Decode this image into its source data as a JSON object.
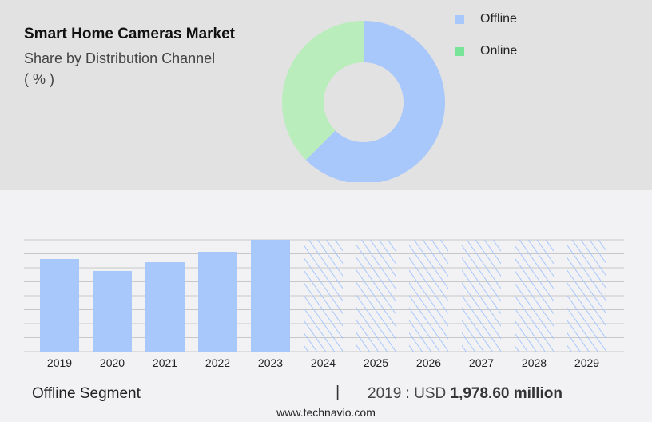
{
  "header": {
    "title": "Smart Home Cameras Market",
    "subtitle": "Share by Distribution Channel",
    "unit": "( % )"
  },
  "colors": {
    "offline": "#a8c8fc",
    "online": "#b9edbb",
    "online_legend": "#78e49a",
    "grid": "#c8c8c8"
  },
  "chart_data": [
    {
      "type": "pie",
      "donut": true,
      "labels": [
        "Offline",
        "Online"
      ],
      "values": [
        62.5,
        37.5
      ],
      "legend_position": "right"
    },
    {
      "type": "bar",
      "categories": [
        "2019",
        "2020",
        "2021",
        "2022",
        "2023",
        "2024",
        "2025",
        "2026",
        "2027",
        "2028",
        "2029"
      ],
      "values": [
        1978.6,
        1723,
        1910,
        2132,
        2388,
        null,
        null,
        null,
        null,
        null,
        null
      ],
      "forecast_hatched": [
        "2024",
        "2025",
        "2026",
        "2027",
        "2028",
        "2029"
      ],
      "ylim": [
        0,
        2388
      ],
      "grid": true,
      "series_name": "Offline"
    }
  ],
  "footer": {
    "segment": "Offline Segment",
    "separator": "|",
    "value_prefix": "2019 : USD ",
    "value_bold": "1,978.60 million",
    "site": "www.technavio.com"
  }
}
